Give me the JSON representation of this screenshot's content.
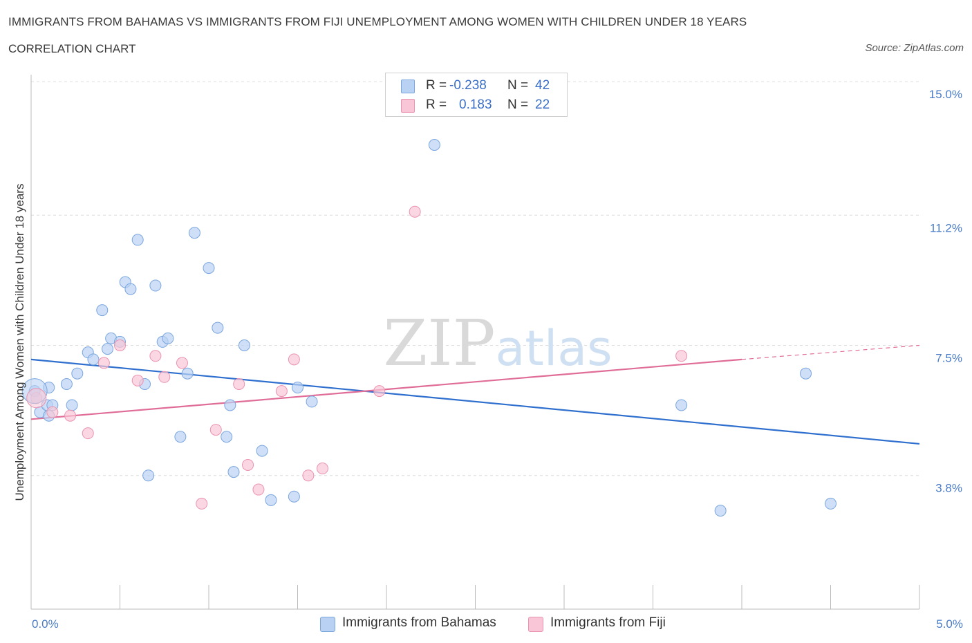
{
  "title": "IMMIGRANTS FROM BAHAMAS VS IMMIGRANTS FROM FIJI UNEMPLOYMENT AMONG WOMEN WITH CHILDREN UNDER 18 YEARS",
  "subtitle": "CORRELATION CHART",
  "source": "Source: ZipAtlas.com",
  "legend_stats": [
    {
      "r_key": "R =",
      "r_value": "-0.238",
      "n_key": "N =",
      "n_value": "42"
    },
    {
      "r_key": "R =",
      "r_value": "0.183",
      "n_key": "N =",
      "n_value": "22"
    }
  ],
  "colors": {
    "bahamas_fill": "#b9d2f3",
    "bahamas_stroke": "#7aa6de",
    "bahamas_line": "#2f6fce",
    "fiji_fill": "#f8c6d6",
    "fiji_stroke": "#ea93b0",
    "fiji_line": "#e06d97",
    "grid": "#dcdcdc",
    "tick_text": "#4a7cc7"
  },
  "chart_data": {
    "type": "scatter",
    "title": "IMMIGRANTS FROM BAHAMAS VS IMMIGRANTS FROM FIJI UNEMPLOYMENT AMONG WOMEN WITH CHILDREN UNDER 18 YEARS",
    "xlabel": "",
    "ylabel": "Unemployment Among Women with Children Under 18 years",
    "xlim": [
      0,
      5
    ],
    "ylim": [
      0,
      15
    ],
    "x_tick_labels": [
      "0.0%",
      "5.0%"
    ],
    "y_ticks": [
      3.8,
      7.5,
      11.2,
      15.0
    ],
    "y_tick_labels": [
      "3.8%",
      "7.5%",
      "11.2%",
      "15.0%"
    ],
    "grid": true,
    "legend_position": "bottom",
    "watermark": "ZIPatlas",
    "series": [
      {
        "name": "Immigrants from Bahamas",
        "points": [
          [
            0.02,
            6.2
          ],
          [
            0.05,
            5.6
          ],
          [
            0.09,
            5.8
          ],
          [
            0.12,
            5.8
          ],
          [
            0.2,
            6.4
          ],
          [
            0.23,
            5.8
          ],
          [
            0.26,
            6.7
          ],
          [
            0.32,
            7.3
          ],
          [
            0.35,
            7.1
          ],
          [
            0.4,
            8.5
          ],
          [
            0.43,
            7.4
          ],
          [
            0.45,
            7.7
          ],
          [
            0.5,
            7.6
          ],
          [
            0.53,
            9.3
          ],
          [
            0.56,
            9.1
          ],
          [
            0.6,
            10.5
          ],
          [
            0.64,
            6.4
          ],
          [
            0.66,
            3.8
          ],
          [
            0.7,
            9.2
          ],
          [
            0.74,
            7.6
          ],
          [
            0.77,
            7.7
          ],
          [
            0.84,
            4.9
          ],
          [
            0.88,
            6.7
          ],
          [
            0.92,
            10.7
          ],
          [
            1.0,
            9.7
          ],
          [
            1.05,
            8.0
          ],
          [
            1.1,
            4.9
          ],
          [
            1.12,
            5.8
          ],
          [
            1.14,
            3.9
          ],
          [
            1.2,
            7.5
          ],
          [
            1.3,
            4.5
          ],
          [
            1.35,
            3.1
          ],
          [
            1.48,
            3.2
          ],
          [
            1.5,
            6.3
          ],
          [
            1.58,
            5.9
          ],
          [
            2.27,
            13.2
          ],
          [
            3.66,
            5.8
          ],
          [
            3.88,
            2.8
          ],
          [
            4.36,
            6.7
          ],
          [
            4.5,
            3.0
          ],
          [
            0.1,
            6.3
          ],
          [
            0.1,
            5.5
          ]
        ],
        "trend": {
          "x": [
            0,
            5
          ],
          "y": [
            7.1,
            4.7
          ]
        }
      },
      {
        "name": "Immigrants from Fiji",
        "points": [
          [
            0.03,
            6.0
          ],
          [
            0.12,
            5.6
          ],
          [
            0.22,
            5.5
          ],
          [
            0.32,
            5.0
          ],
          [
            0.41,
            7.0
          ],
          [
            0.5,
            7.5
          ],
          [
            0.6,
            6.5
          ],
          [
            0.7,
            7.2
          ],
          [
            0.75,
            6.6
          ],
          [
            0.85,
            7.0
          ],
          [
            0.96,
            3.0
          ],
          [
            1.04,
            5.1
          ],
          [
            1.17,
            6.4
          ],
          [
            1.22,
            4.1
          ],
          [
            1.28,
            3.4
          ],
          [
            1.41,
            6.2
          ],
          [
            1.48,
            7.1
          ],
          [
            1.56,
            3.8
          ],
          [
            1.64,
            4.0
          ],
          [
            1.96,
            6.2
          ],
          [
            2.16,
            11.3
          ],
          [
            3.66,
            7.2
          ]
        ],
        "trend": {
          "x": [
            0,
            4.0
          ],
          "y": [
            5.4,
            7.1
          ]
        },
        "trend_extension": {
          "x": [
            4.0,
            5.0
          ],
          "y": [
            7.1,
            7.5
          ]
        }
      }
    ]
  },
  "legend_bottom": [
    {
      "label": "Immigrants from Bahamas"
    },
    {
      "label": "Immigrants from Fiji"
    }
  ]
}
